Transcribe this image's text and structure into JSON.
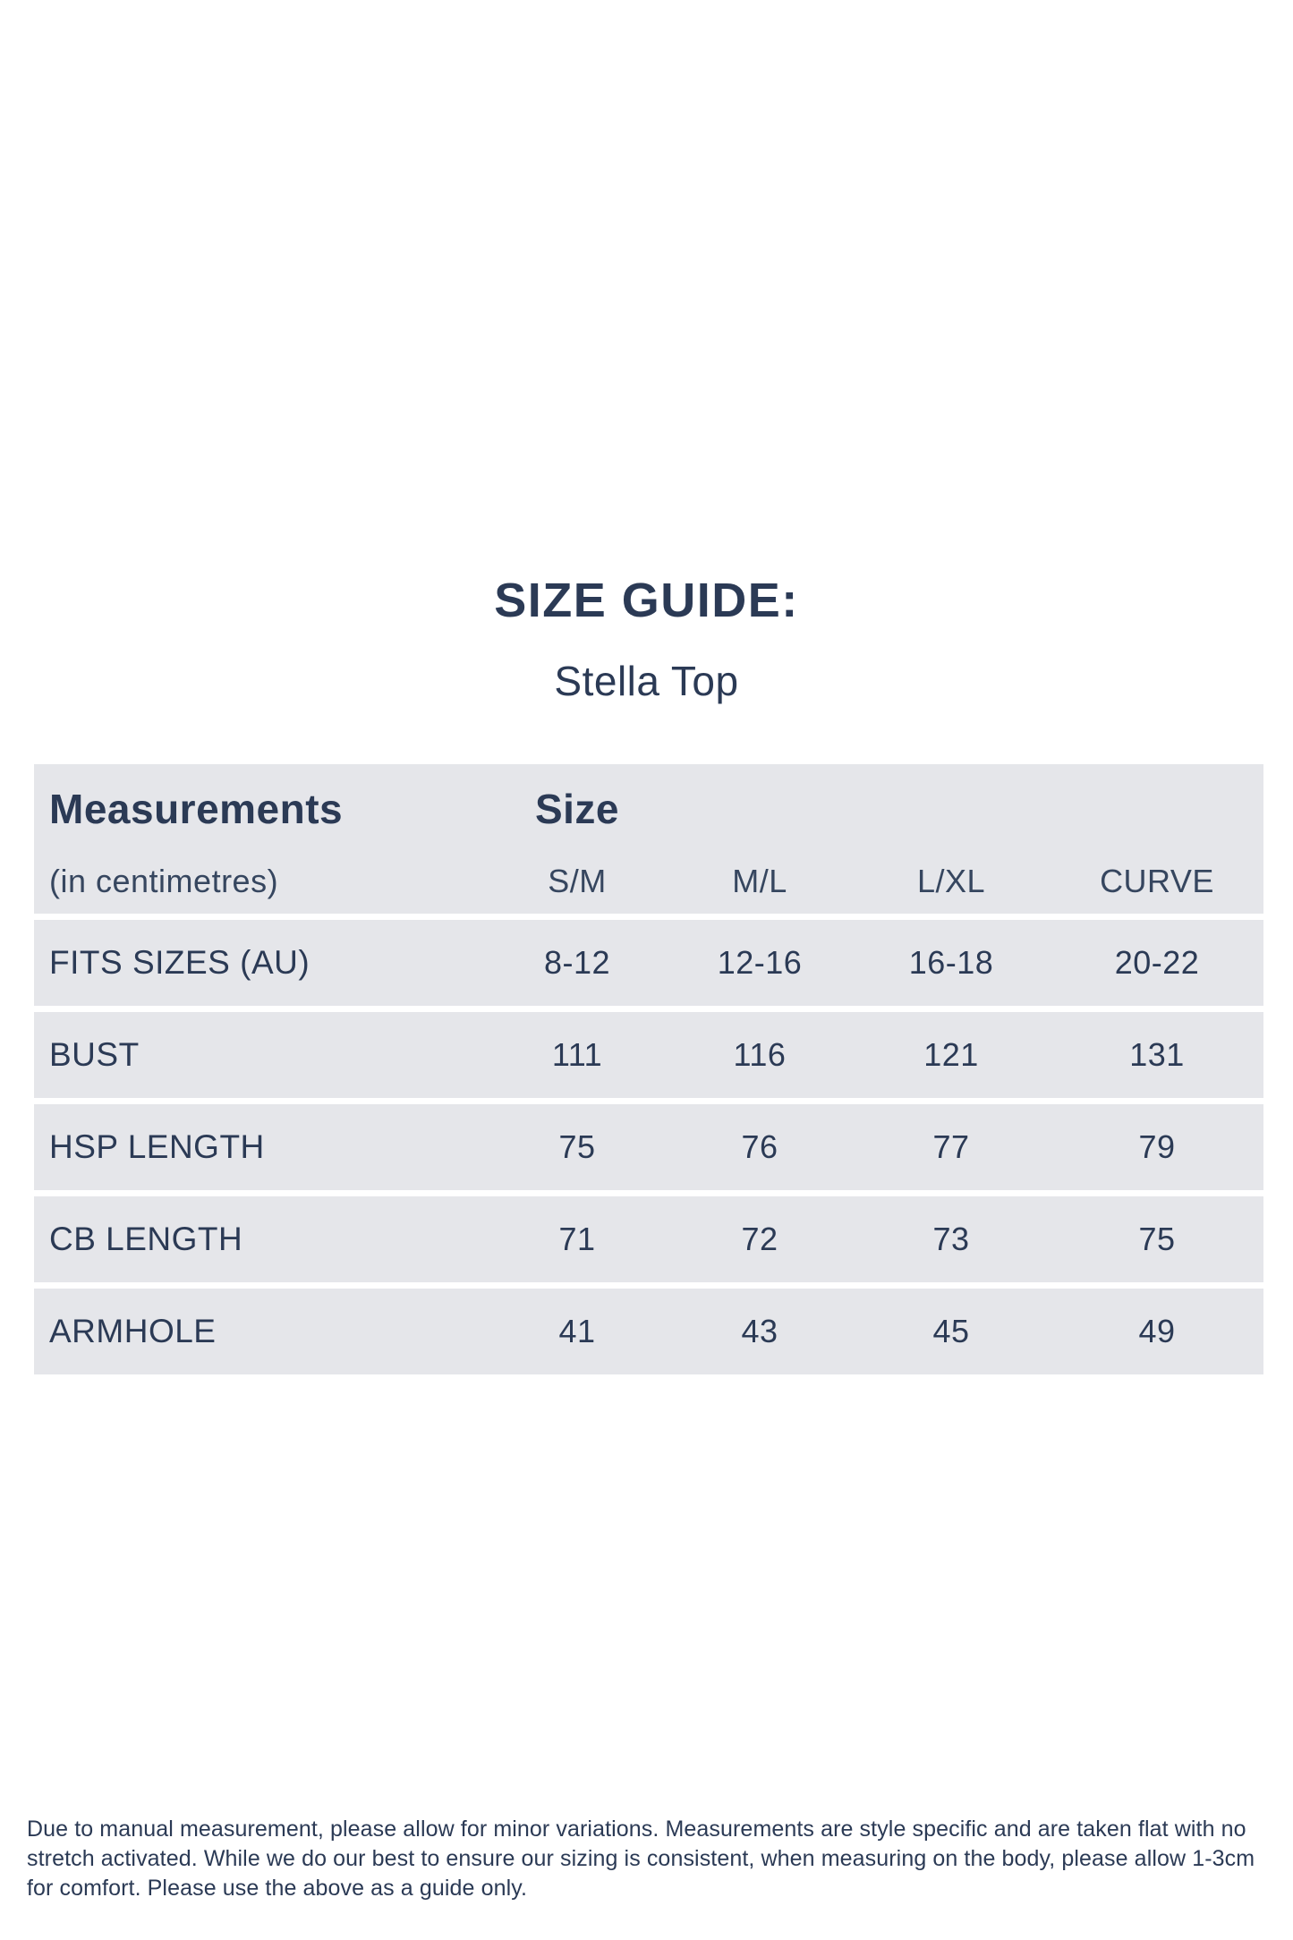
{
  "page": {
    "title": "SIZE GUIDE:",
    "subtitle": "Stella Top"
  },
  "table": {
    "header": {
      "measurements_title": "Measurements",
      "measurements_sub": "(in centimetres)",
      "size_title": "Size",
      "sizes": [
        "S/M",
        "M/L",
        "L/XL",
        "CURVE"
      ]
    },
    "rows": [
      {
        "label": "FITS SIZES (AU)",
        "values": [
          "8-12",
          "12-16",
          "16-18",
          "20-22"
        ]
      },
      {
        "label": "BUST",
        "values": [
          "111",
          "116",
          "121",
          "131"
        ]
      },
      {
        "label": "HSP LENGTH",
        "values": [
          "75",
          "76",
          "77",
          "79"
        ]
      },
      {
        "label": "CB LENGTH",
        "values": [
          "71",
          "72",
          "73",
          "75"
        ]
      },
      {
        "label": "ARMHOLE",
        "values": [
          "41",
          "43",
          "45",
          "49"
        ]
      }
    ]
  },
  "footer": {
    "text": "Due to manual measurement, please allow for minor variations. Measurements are style specific and are taken flat with no stretch activated. While we do our best to ensure our sizing is consistent, when measuring on the body, please allow 1-3cm for comfort. Please use the above as a guide only."
  },
  "colors": {
    "text_navy": "#2b3a55",
    "text_navy_soft": "#36465f",
    "row_background": "#e5e6ea",
    "page_background": "#ffffff"
  }
}
